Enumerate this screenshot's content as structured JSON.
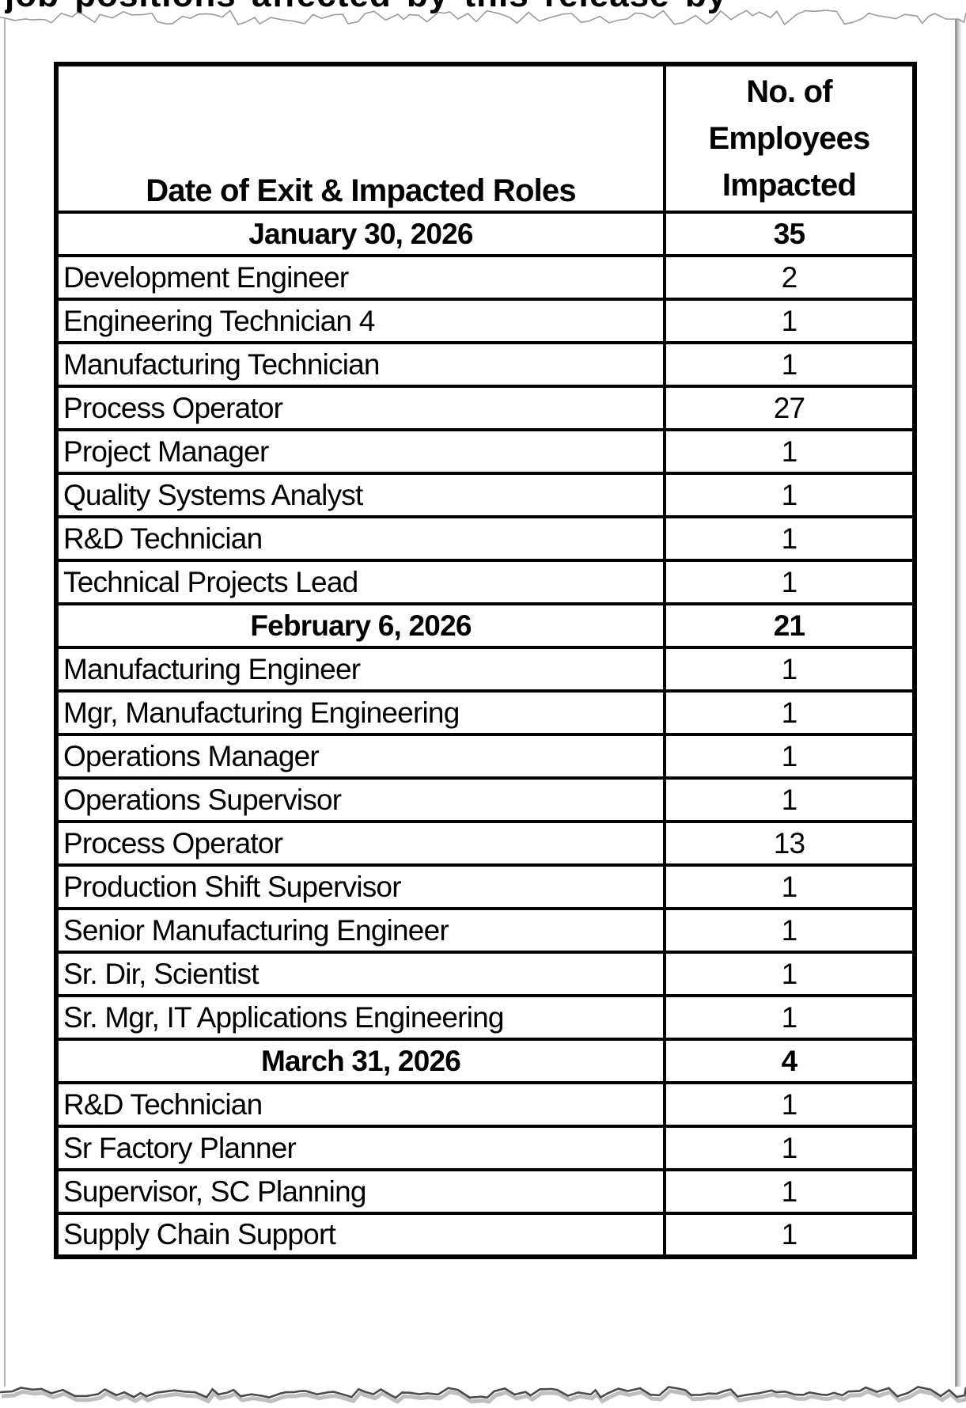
{
  "document": {
    "clipped_top_line": "job positions affected by this release by",
    "colors": {
      "table_border": "#000000",
      "text": "#000000",
      "page_edge": "#9a9a9a",
      "background": "#ffffff"
    }
  },
  "table": {
    "header": {
      "roles_column": "Date of Exit & Impacted Roles",
      "count_lines": [
        "No. of",
        "Employees",
        "Impacted"
      ]
    },
    "rows": [
      {
        "type": "date",
        "label": "January 30, 2026",
        "count": "35"
      },
      {
        "type": "role",
        "label": "Development Engineer",
        "count": "2"
      },
      {
        "type": "role",
        "label": "Engineering Technician 4",
        "count": "1"
      },
      {
        "type": "role",
        "label": "Manufacturing Technician",
        "count": "1"
      },
      {
        "type": "role",
        "label": "Process Operator",
        "count": "27"
      },
      {
        "type": "role",
        "label": "Project Manager",
        "count": "1"
      },
      {
        "type": "role",
        "label": "Quality Systems Analyst",
        "count": "1"
      },
      {
        "type": "role",
        "label": "R&D Technician",
        "count": "1"
      },
      {
        "type": "role",
        "label": "Technical Projects Lead",
        "count": "1"
      },
      {
        "type": "date",
        "label": "February 6, 2026",
        "count": "21"
      },
      {
        "type": "role",
        "label": "Manufacturing Engineer",
        "count": "1"
      },
      {
        "type": "role",
        "label": "Mgr, Manufacturing Engineering",
        "count": "1"
      },
      {
        "type": "role",
        "label": "Operations Manager",
        "count": "1"
      },
      {
        "type": "role",
        "label": "Operations Supervisor",
        "count": "1"
      },
      {
        "type": "role",
        "label": "Process Operator",
        "count": "13"
      },
      {
        "type": "role",
        "label": "Production Shift Supervisor",
        "count": "1"
      },
      {
        "type": "role",
        "label": "Senior Manufacturing Engineer",
        "count": "1"
      },
      {
        "type": "role",
        "label": "Sr. Dir, Scientist",
        "count": "1"
      },
      {
        "type": "role",
        "label": "Sr. Mgr, IT Applications Engineering",
        "count": "1"
      },
      {
        "type": "date",
        "label": "March 31, 2026",
        "count": "4"
      },
      {
        "type": "role",
        "label": "R&D Technician",
        "count": "1"
      },
      {
        "type": "role",
        "label": "Sr Factory Planner",
        "count": "1"
      },
      {
        "type": "role",
        "label": "Supervisor, SC Planning",
        "count": "1"
      },
      {
        "type": "role",
        "label": "Supply Chain Support",
        "count": "1"
      }
    ]
  }
}
